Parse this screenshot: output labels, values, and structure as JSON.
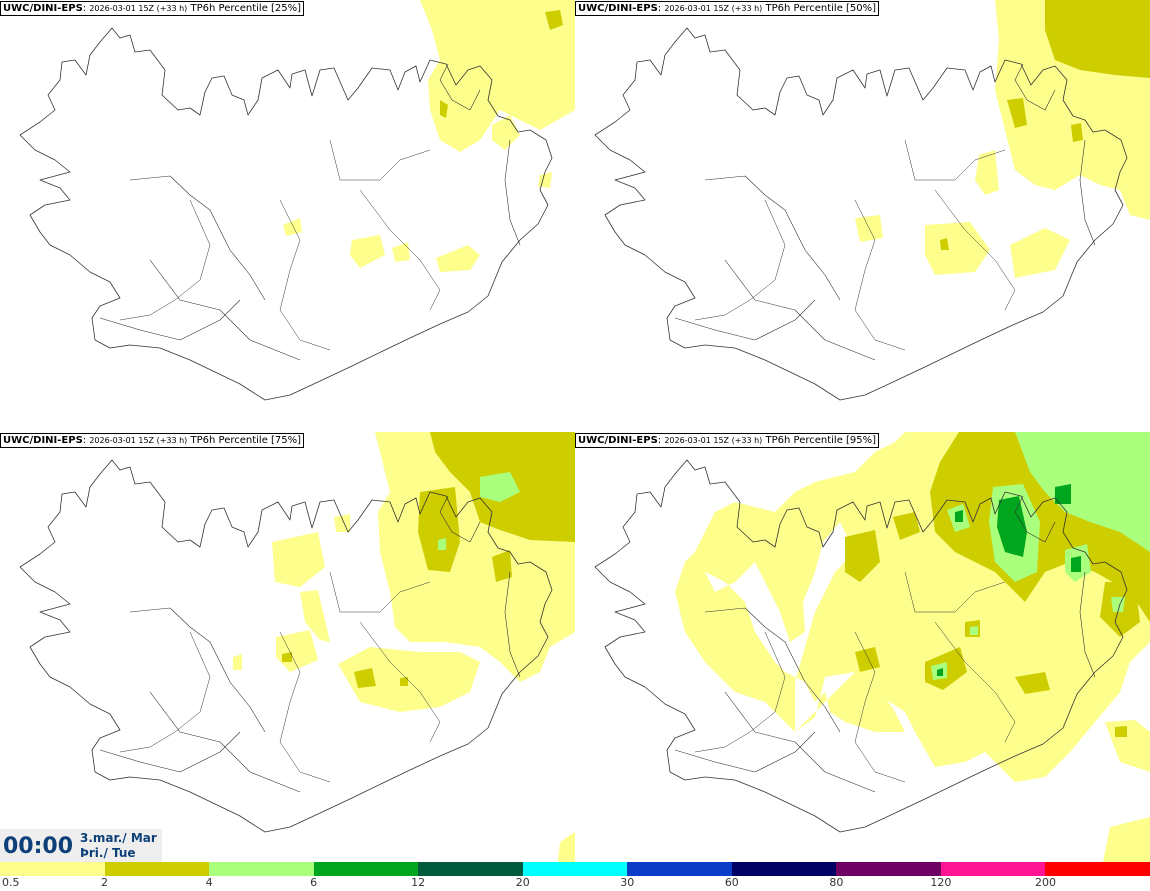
{
  "panels": [
    {
      "model": "UWC/DINI-EPS",
      "run": "2026-03-01 15Z (+33 h)",
      "product": "TP6h Percentile [25%]"
    },
    {
      "model": "UWC/DINI-EPS",
      "run": "2026-03-01 15Z (+33 h)",
      "product": "TP6h Percentile [50%]"
    },
    {
      "model": "UWC/DINI-EPS",
      "run": "2026-03-01 15Z (+33 h)",
      "product": "TP6h Percentile [75%]"
    },
    {
      "model": "UWC/DINI-EPS",
      "run": "2026-03-01 15Z (+33 h)",
      "product": "TP6h Percentile [95%]"
    }
  ],
  "valid_time": {
    "time": "00:00",
    "date": "3.mar./ Mar",
    "weekday": "Þri./ Tue"
  },
  "colorbar": {
    "ticks": [
      "0.5",
      "2",
      "4",
      "6",
      "12",
      "20",
      "30",
      "60",
      "80",
      "120",
      "200"
    ],
    "colors": [
      "#fefe8c",
      "#cdcd00",
      "#aaff7d",
      "#00a61e",
      "#005a3c",
      "#00ffff",
      "#0a3cc8",
      "#000064",
      "#6e0064",
      "#ff1493",
      "#ff0000"
    ]
  }
}
